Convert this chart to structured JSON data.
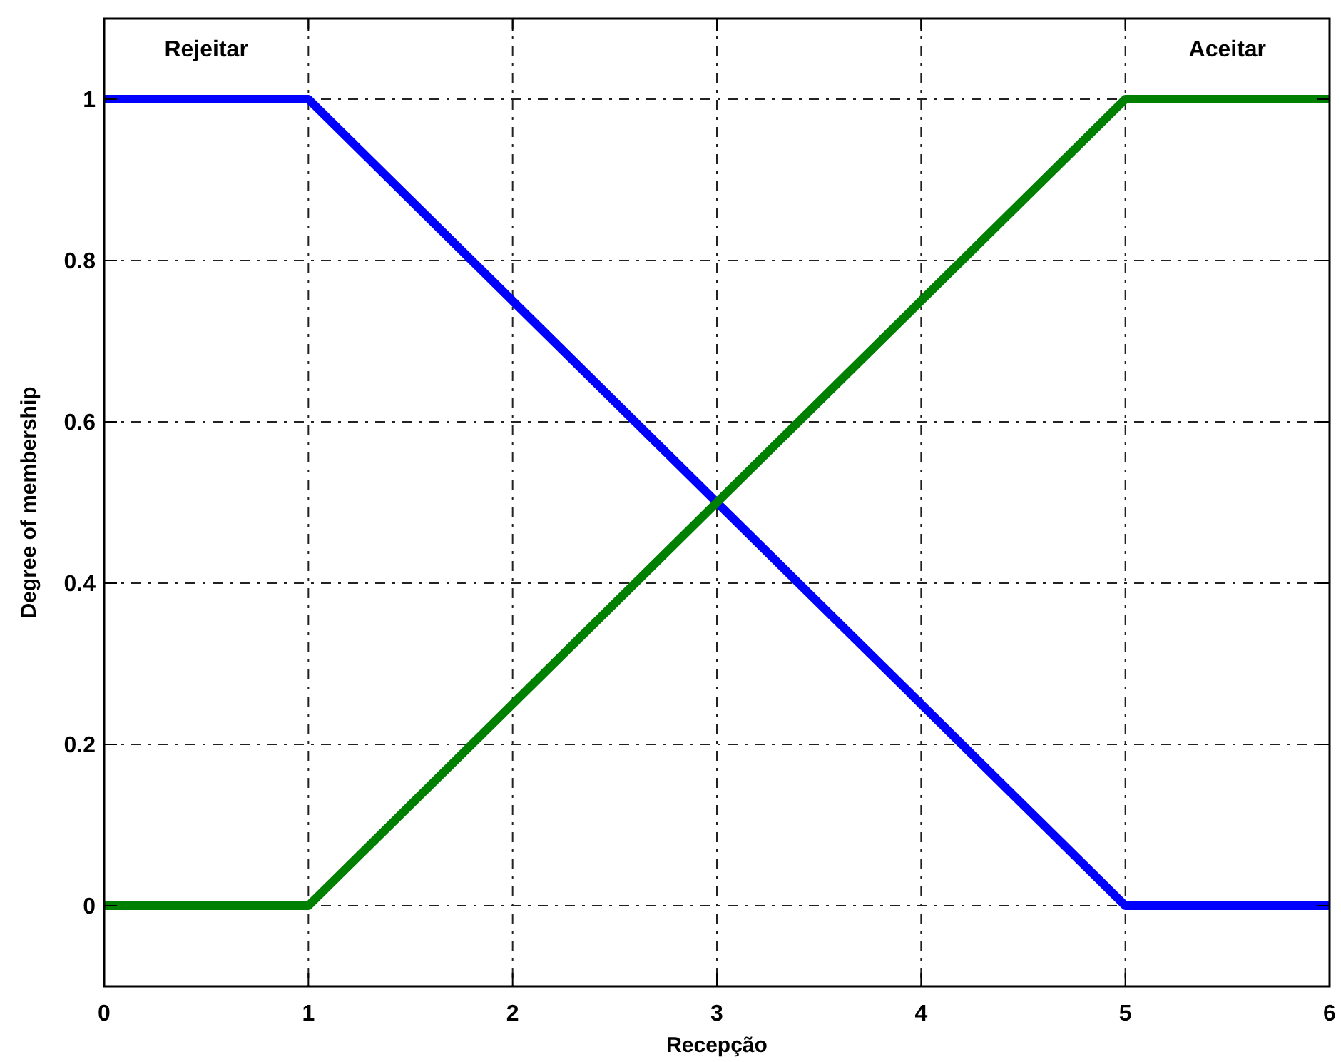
{
  "chart_data": {
    "type": "line",
    "xlabel": "Recepção",
    "ylabel": "Degree of membership",
    "x": [
      0,
      1,
      5,
      6
    ],
    "series": [
      {
        "name": "Rejeitar",
        "color": "#0000ff",
        "values": [
          1,
          1,
          0,
          0
        ]
      },
      {
        "name": "Aceitar",
        "color": "#008000",
        "values": [
          0,
          0,
          1,
          1
        ]
      }
    ],
    "xlim": [
      0,
      6
    ],
    "xticks": [
      0,
      1,
      2,
      3,
      4,
      5,
      6
    ],
    "ylim": [
      -0.1,
      1.1
    ],
    "yticks": [
      0,
      0.2,
      0.4,
      0.6,
      0.8,
      1
    ],
    "grid": true,
    "line_style": "solid"
  }
}
